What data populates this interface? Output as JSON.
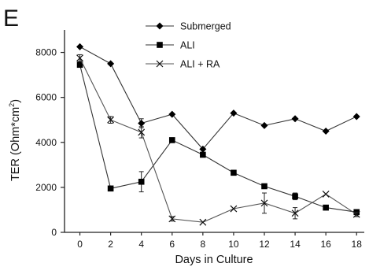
{
  "panel_label": "E",
  "chart_data": {
    "type": "line",
    "xlabel": "Days in Culture",
    "ylabel_main": "TER (Ohm*cm",
    "ylabel_sup": "2",
    "ylabel_close": ")",
    "xlim": [
      -1,
      18.5
    ],
    "ylim": [
      0,
      9000
    ],
    "xticks": [
      0,
      2,
      4,
      6,
      8,
      10,
      12,
      14,
      16,
      18
    ],
    "yticks": [
      0,
      2000,
      4000,
      6000,
      8000
    ],
    "grid": false,
    "legend_position": "top-center",
    "series": [
      {
        "name": "Submerged",
        "marker": "diamond",
        "x": [
          0,
          2,
          4,
          6,
          8,
          10,
          12,
          14,
          16,
          18
        ],
        "y": [
          8250,
          7500,
          4850,
          5250,
          3700,
          5300,
          4750,
          5050,
          4500,
          5150
        ],
        "err": [
          0,
          0,
          200,
          0,
          0,
          0,
          0,
          0,
          0,
          0
        ]
      },
      {
        "name": "ALI",
        "marker": "square",
        "x": [
          0,
          2,
          4,
          6,
          8,
          10,
          12,
          14,
          16,
          18
        ],
        "y": [
          7450,
          1950,
          2250,
          4100,
          3450,
          2650,
          2050,
          1600,
          1100,
          900
        ],
        "err": [
          0,
          0,
          450,
          0,
          0,
          0,
          0,
          150,
          0,
          100
        ]
      },
      {
        "name": "ALI + RA",
        "marker": "x",
        "x": [
          0,
          2,
          4,
          6,
          8,
          10,
          12,
          14,
          16,
          18
        ],
        "y": [
          7750,
          5000,
          4450,
          600,
          450,
          1050,
          1300,
          850,
          1700,
          800
        ],
        "err": [
          150,
          150,
          250,
          100,
          0,
          0,
          450,
          250,
          0,
          100
        ]
      }
    ]
  }
}
